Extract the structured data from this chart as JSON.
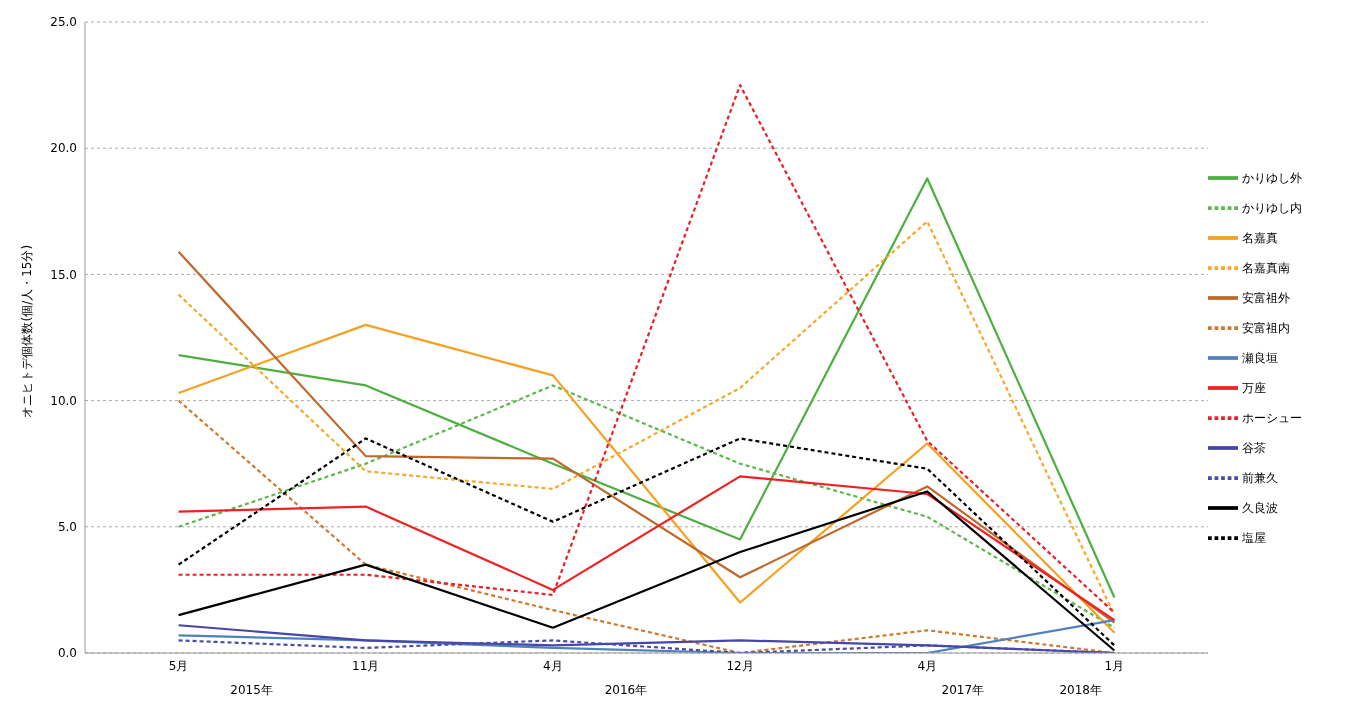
{
  "chart_data": {
    "type": "line",
    "ylabel": "オニヒトデ個体数(個/人・15分)",
    "categories": [
      "5月",
      "11月",
      "4月",
      "12月",
      "4月",
      "1月"
    ],
    "annotations": [
      "2015年",
      "2016年",
      "2017年",
      "2018年"
    ],
    "ylim": [
      0,
      25
    ],
    "yticks": [
      {
        "value": 0,
        "label": "0.0"
      },
      {
        "value": 5,
        "label": "5.0"
      },
      {
        "value": 10,
        "label": "10.0"
      },
      {
        "value": 15,
        "label": "15.0"
      },
      {
        "value": 20,
        "label": "20.0"
      },
      {
        "value": 25,
        "label": "25.0"
      }
    ],
    "grid": "y",
    "legend": "right",
    "marker": "none",
    "series": [
      {
        "name": "かりゆし外",
        "color": "#4caf3f",
        "line_style": "solid",
        "values": [
          11.8,
          10.6,
          7.5,
          4.5,
          18.8,
          2.2
        ]
      },
      {
        "name": "かりゆし内",
        "color": "#5cb84c",
        "line_style": "dashed",
        "values": [
          5.0,
          7.5,
          10.6,
          7.5,
          5.4,
          1.0
        ]
      },
      {
        "name": "名嘉真",
        "color": "#f5a020",
        "line_style": "solid",
        "values": [
          10.3,
          13.0,
          11.0,
          2.0,
          8.3,
          0.8
        ]
      },
      {
        "name": "名嘉真南",
        "color": "#f7a72a",
        "line_style": "dashed",
        "values": [
          14.2,
          7.2,
          6.5,
          10.5,
          17.1,
          1.5
        ]
      },
      {
        "name": "安富祖外",
        "color": "#c0672a",
        "line_style": "solid",
        "values": [
          15.9,
          7.8,
          7.7,
          3.0,
          6.6,
          1.2
        ]
      },
      {
        "name": "安富祖内",
        "color": "#d0782a",
        "line_style": "dashed",
        "values": [
          10.0,
          3.5,
          1.7,
          0.0,
          0.9,
          0.0
        ]
      },
      {
        "name": "瀬良垣",
        "color": "#4f81bd",
        "line_style": "solid",
        "values": [
          0.7,
          0.5,
          0.2,
          0.0,
          0.0,
          1.3
        ]
      },
      {
        "name": "万座",
        "color": "#ee2222",
        "line_style": "solid",
        "values": [
          5.6,
          5.8,
          2.5,
          7.0,
          6.3,
          1.3
        ]
      },
      {
        "name": "ホーシュー",
        "color": "#e8202a",
        "line_style": "dashed",
        "values": [
          3.1,
          3.1,
          2.3,
          22.5,
          8.4,
          1.6
        ]
      },
      {
        "name": "谷茶",
        "color": "#4646aa",
        "line_style": "solid",
        "values": [
          1.1,
          0.5,
          0.3,
          0.5,
          0.3,
          0.0
        ]
      },
      {
        "name": "前兼久",
        "color": "#4a4aa8",
        "line_style": "dashed",
        "values": [
          0.5,
          0.2,
          0.5,
          0.0,
          0.3,
          0.0
        ]
      },
      {
        "name": "久良波",
        "color": "#000000",
        "line_style": "solid",
        "values": [
          1.5,
          3.5,
          1.0,
          4.0,
          6.4,
          0.1
        ]
      },
      {
        "name": "塩屋",
        "color": "#000000",
        "line_style": "dashed",
        "values": [
          3.5,
          8.5,
          5.2,
          8.5,
          7.3,
          0.3
        ]
      }
    ]
  }
}
